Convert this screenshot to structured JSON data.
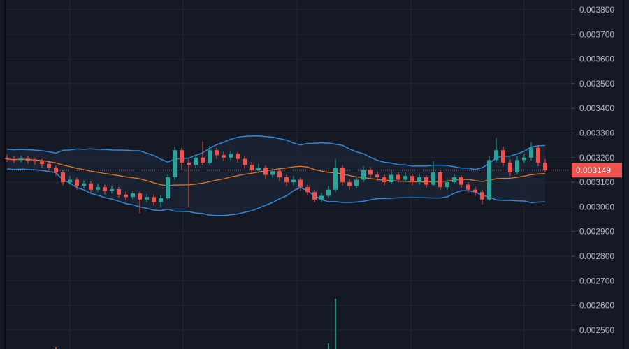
{
  "chart_data": {
    "type": "candlestick",
    "indicators": [
      "bollinger-bands"
    ],
    "grid": true,
    "colors": {
      "background": "#151924",
      "grid": "#232733",
      "up": "#26a69a",
      "down": "#ef5350",
      "band": "#2e89d9",
      "band_fill": "#1b2436",
      "basis": "#e17b22",
      "last_price_bg": "#ef5350"
    },
    "ylim": [
      0.00245,
      0.00385
    ],
    "y_ticks": [
      "0.003800",
      "0.003700",
      "0.003600",
      "0.003500",
      "0.003400",
      "0.003300",
      "0.003200",
      "0.003100",
      "0.003000",
      "0.002900",
      "0.002800",
      "0.002700",
      "0.002600",
      "0.002500"
    ],
    "last_price": "0.003149",
    "candles_ohlc": [
      [
        0.003198,
        0.003212,
        0.003182,
        0.003194
      ],
      [
        0.003194,
        0.003205,
        0.003178,
        0.00319
      ],
      [
        0.00319,
        0.003208,
        0.00318,
        0.003196
      ],
      [
        0.003196,
        0.003206,
        0.003176,
        0.003188
      ],
      [
        0.003188,
        0.0032,
        0.003172,
        0.003185
      ],
      [
        0.003185,
        0.003195,
        0.00316,
        0.003174
      ],
      [
        0.003174,
        0.003185,
        0.003148,
        0.00316
      ],
      [
        0.00316,
        0.00317,
        0.003126,
        0.00314
      ],
      [
        0.00314,
        0.00315,
        0.003088,
        0.0031
      ],
      [
        0.0031,
        0.003125,
        0.00309,
        0.00311
      ],
      [
        0.00311,
        0.003118,
        0.00307,
        0.003085
      ],
      [
        0.003085,
        0.003108,
        0.003075,
        0.003095
      ],
      [
        0.003095,
        0.003104,
        0.003058,
        0.00307
      ],
      [
        0.00307,
        0.003094,
        0.00306,
        0.00308
      ],
      [
        0.00308,
        0.00309,
        0.00305,
        0.003065
      ],
      [
        0.003065,
        0.003086,
        0.003055,
        0.003072
      ],
      [
        0.003072,
        0.00308,
        0.003038,
        0.00305
      ],
      [
        0.00305,
        0.003062,
        0.003028,
        0.00304
      ],
      [
        0.00304,
        0.003066,
        0.00303,
        0.003055
      ],
      [
        0.003055,
        0.003062,
        0.002975,
        0.00303
      ],
      [
        0.00303,
        0.003052,
        0.003018,
        0.00304
      ],
      [
        0.00304,
        0.00305,
        0.003005,
        0.00302
      ],
      [
        0.00302,
        0.003046,
        0.003,
        0.003035
      ],
      [
        0.003035,
        0.00313,
        0.003028,
        0.00312
      ],
      [
        0.00312,
        0.003245,
        0.00311,
        0.00323
      ],
      [
        0.00323,
        0.00324,
        0.00315,
        0.00318
      ],
      [
        0.00318,
        0.003195,
        0.003,
        0.00317
      ],
      [
        0.00317,
        0.003212,
        0.00316,
        0.0032
      ],
      [
        0.0032,
        0.003265,
        0.00317,
        0.00318
      ],
      [
        0.00318,
        0.003248,
        0.003172,
        0.00323
      ],
      [
        0.00323,
        0.00324,
        0.003195,
        0.00321
      ],
      [
        0.00321,
        0.003225,
        0.003186,
        0.0032
      ],
      [
        0.0032,
        0.003228,
        0.00319,
        0.003215
      ],
      [
        0.003215,
        0.003222,
        0.00318,
        0.003195
      ],
      [
        0.003195,
        0.003205,
        0.003156,
        0.00317
      ],
      [
        0.00317,
        0.003182,
        0.003135,
        0.00315
      ],
      [
        0.00315,
        0.003175,
        0.003138,
        0.00316
      ],
      [
        0.00316,
        0.003168,
        0.003115,
        0.00313
      ],
      [
        0.00313,
        0.003158,
        0.003118,
        0.003145
      ],
      [
        0.003145,
        0.003152,
        0.003105,
        0.00312
      ],
      [
        0.00312,
        0.00313,
        0.003085,
        0.0031
      ],
      [
        0.0031,
        0.003125,
        0.003088,
        0.00311
      ],
      [
        0.00311,
        0.003118,
        0.003066,
        0.00308
      ],
      [
        0.00308,
        0.00309,
        0.003045,
        0.00306
      ],
      [
        0.00306,
        0.00307,
        0.003018,
        0.00303
      ],
      [
        0.00303,
        0.003058,
        0.00302,
        0.003045
      ],
      [
        0.003045,
        0.003085,
        0.003036,
        0.00307
      ],
      [
        0.00307,
        0.003195,
        0.00306,
        0.00316
      ],
      [
        0.00316,
        0.00317,
        0.003088,
        0.0031
      ],
      [
        0.0031,
        0.003112,
        0.00307,
        0.003085
      ],
      [
        0.003085,
        0.003125,
        0.003075,
        0.00311
      ],
      [
        0.00311,
        0.003165,
        0.0031,
        0.00315
      ],
      [
        0.00315,
        0.003162,
        0.003118,
        0.00313
      ],
      [
        0.00313,
        0.003145,
        0.003105,
        0.00312
      ],
      [
        0.00312,
        0.003132,
        0.003088,
        0.0031
      ],
      [
        0.0031,
        0.003145,
        0.003092,
        0.00313
      ],
      [
        0.00313,
        0.00314,
        0.003098,
        0.00311
      ],
      [
        0.00311,
        0.00314,
        0.0031,
        0.003125
      ],
      [
        0.003125,
        0.003135,
        0.003088,
        0.0031
      ],
      [
        0.0031,
        0.003135,
        0.00309,
        0.00312
      ],
      [
        0.00312,
        0.003128,
        0.003078,
        0.00309
      ],
      [
        0.00309,
        0.003185,
        0.003085,
        0.00314
      ],
      [
        0.00314,
        0.00315,
        0.003068,
        0.00308
      ],
      [
        0.00308,
        0.003115,
        0.00307,
        0.0031
      ],
      [
        0.0031,
        0.003135,
        0.003092,
        0.00312
      ],
      [
        0.00312,
        0.003128,
        0.003078,
        0.00309
      ],
      [
        0.00309,
        0.0031,
        0.003058,
        0.00307
      ],
      [
        0.00307,
        0.003082,
        0.003045,
        0.00306
      ],
      [
        0.00306,
        0.00307,
        0.00301,
        0.00303
      ],
      [
        0.00303,
        0.003205,
        0.003025,
        0.00319
      ],
      [
        0.00319,
        0.00328,
        0.00318,
        0.00323
      ],
      [
        0.00323,
        0.003245,
        0.003165,
        0.00318
      ],
      [
        0.00318,
        0.003192,
        0.003125,
        0.00314
      ],
      [
        0.00314,
        0.003205,
        0.003132,
        0.00319
      ],
      [
        0.00319,
        0.003215,
        0.003178,
        0.0032
      ],
      [
        0.0032,
        0.003262,
        0.00319,
        0.00324
      ],
      [
        0.00324,
        0.00325,
        0.003165,
        0.00318
      ],
      [
        0.00318,
        0.003195,
        0.00314,
        0.003149
      ]
    ],
    "volume_relative": {
      "7": 0.03,
      "46": 0.08,
      "47": 0.72
    }
  }
}
